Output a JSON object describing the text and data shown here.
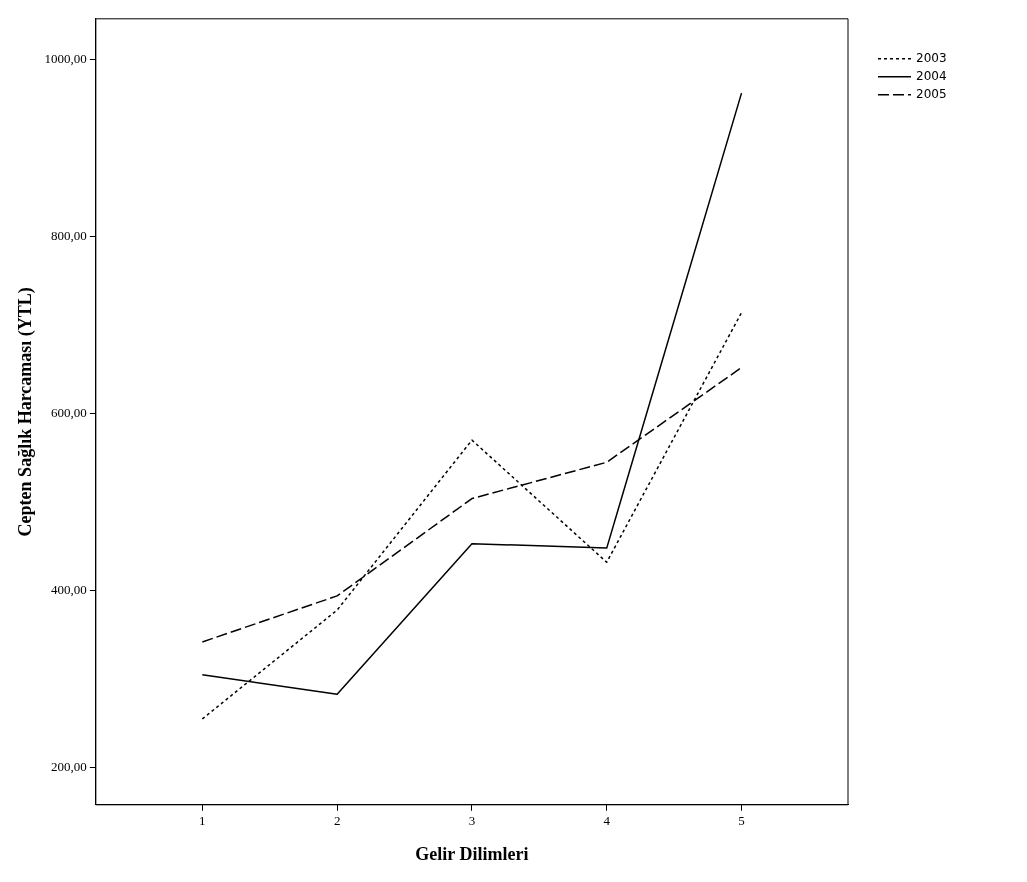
{
  "chart_data": {
    "type": "line",
    "xlabel": "Gelir Dilimleri",
    "ylabel": "Cepten Sağlık Harcaması (YTL)",
    "x": [
      1,
      2,
      3,
      4,
      5
    ],
    "xlim": [
      0.21,
      5.79
    ],
    "xticks": [
      1,
      2,
      3,
      4,
      5
    ],
    "ylim": [
      158,
      1046
    ],
    "yticks": [
      {
        "value": 200,
        "label": "200,00"
      },
      {
        "value": 400,
        "label": "400,00"
      },
      {
        "value": 600,
        "label": "600,00"
      },
      {
        "value": 800,
        "label": "800,00"
      },
      {
        "value": 1000,
        "label": "1000,00"
      }
    ],
    "series": [
      {
        "name": "2003",
        "color": "#000000",
        "line_style": "dotted",
        "values": [
          255,
          378,
          570,
          432,
          714
        ]
      },
      {
        "name": "2004",
        "color": "#000000",
        "line_style": "solid",
        "values": [
          305,
          283,
          453,
          448,
          962
        ]
      },
      {
        "name": "2005",
        "color": "#000000",
        "line_style": "dashed",
        "values": [
          342,
          394,
          504,
          545,
          652
        ]
      }
    ],
    "grid": false,
    "legend": "top right",
    "marker": "none"
  }
}
